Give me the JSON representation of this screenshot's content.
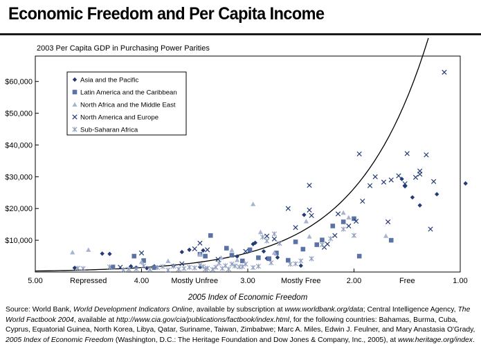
{
  "title": "Economic Freedom and Per Capita Income",
  "chart_data": {
    "type": "scatter",
    "ylabel": "2003 Per Capita GDP in Purchasing Power Parities",
    "xlabel": "2005 Index of Economic Freedom",
    "xlim": [
      5.0,
      1.0
    ],
    "ylim": [
      0,
      68000
    ],
    "x_reversed": true,
    "x_ticks": [
      "5.00",
      "4.00",
      "3.00",
      "2.00",
      "1.00"
    ],
    "x_categories": [
      "Repressed",
      "Mostly Unfree",
      "Mostly Free",
      "Free"
    ],
    "y_ticks": [
      "$10,000",
      "$20,000",
      "$30,000",
      "$40,000",
      "$50,000",
      "$60,000"
    ],
    "legend_position": "top-left",
    "series": [
      {
        "name": "Asia and the Pacific",
        "marker": "diamond",
        "color": "#233a74",
        "points": [
          [
            4.63,
            1300
          ],
          [
            4.37,
            5800
          ],
          [
            4.3,
            5700
          ],
          [
            4.1,
            1800
          ],
          [
            4.05,
            1400
          ],
          [
            3.95,
            1200
          ],
          [
            3.88,
            1800
          ],
          [
            3.7,
            2000
          ],
          [
            3.62,
            6300
          ],
          [
            3.55,
            7000
          ],
          [
            3.45,
            1600
          ],
          [
            3.42,
            6800
          ],
          [
            3.1,
            4900
          ],
          [
            2.95,
            8800
          ],
          [
            2.93,
            9200
          ],
          [
            2.85,
            6500
          ],
          [
            2.82,
            4300
          ],
          [
            2.72,
            4600
          ],
          [
            2.5,
            2000
          ],
          [
            2.47,
            18000
          ],
          [
            1.55,
            29300
          ],
          [
            1.52,
            27000
          ],
          [
            1.45,
            23500
          ],
          [
            1.38,
            21000
          ],
          [
            1.22,
            24500
          ],
          [
            0.95,
            27900
          ]
        ]
      },
      {
        "name": "Latin America and the Caribbean",
        "marker": "square",
        "color": "#5b72a6",
        "points": [
          [
            4.27,
            1600
          ],
          [
            4.07,
            5000
          ],
          [
            3.98,
            3600
          ],
          [
            3.88,
            1400
          ],
          [
            3.45,
            5600
          ],
          [
            3.4,
            5000
          ],
          [
            3.35,
            11500
          ],
          [
            3.2,
            7500
          ],
          [
            3.15,
            5300
          ],
          [
            3.05,
            3500
          ],
          [
            2.98,
            7000
          ],
          [
            2.9,
            4500
          ],
          [
            2.8,
            4200
          ],
          [
            2.73,
            6000
          ],
          [
            2.62,
            3700
          ],
          [
            2.55,
            9500
          ],
          [
            2.48,
            7200
          ],
          [
            2.35,
            8600
          ],
          [
            2.3,
            10100
          ],
          [
            2.2,
            14500
          ],
          [
            2.1,
            15800
          ],
          [
            2.0,
            16800
          ],
          [
            1.95,
            5000
          ],
          [
            1.65,
            10000
          ]
        ]
      },
      {
        "name": "North Africa and the Middle East",
        "marker": "triangle",
        "color": "#a7b4d0",
        "points": [
          [
            4.65,
            6200
          ],
          [
            4.5,
            7000
          ],
          [
            4.0,
            3200
          ],
          [
            3.75,
            3500
          ],
          [
            3.45,
            5600
          ],
          [
            3.25,
            4500
          ],
          [
            3.15,
            6900
          ],
          [
            3.1,
            3800
          ],
          [
            2.95,
            21400
          ],
          [
            2.88,
            12600
          ],
          [
            2.75,
            6100
          ],
          [
            2.45,
            16000
          ],
          [
            2.42,
            11200
          ],
          [
            2.1,
            18700
          ],
          [
            2.05,
            17200
          ],
          [
            1.7,
            11400
          ]
        ]
      },
      {
        "name": "North America and Europe",
        "marker": "x",
        "color": "#233a74",
        "points": [
          [
            4.2,
            1500
          ],
          [
            4.0,
            6000
          ],
          [
            3.62,
            2600
          ],
          [
            3.5,
            7300
          ],
          [
            3.45,
            9100
          ],
          [
            3.38,
            7000
          ],
          [
            3.28,
            4000
          ],
          [
            3.02,
            6500
          ],
          [
            2.82,
            11300
          ],
          [
            2.75,
            10400
          ],
          [
            2.62,
            20000
          ],
          [
            2.55,
            14000
          ],
          [
            2.42,
            19500
          ],
          [
            2.42,
            27300
          ],
          [
            2.4,
            17800
          ],
          [
            2.28,
            7800
          ],
          [
            2.25,
            8800
          ],
          [
            2.18,
            11500
          ],
          [
            2.15,
            18300
          ],
          [
            2.05,
            14500
          ],
          [
            1.98,
            16000
          ],
          [
            1.95,
            37200
          ],
          [
            1.92,
            22300
          ],
          [
            1.85,
            27200
          ],
          [
            1.8,
            30000
          ],
          [
            1.72,
            28300
          ],
          [
            1.68,
            15800
          ],
          [
            1.65,
            29000
          ],
          [
            1.58,
            30300
          ],
          [
            1.52,
            27800
          ],
          [
            1.5,
            37300
          ],
          [
            1.42,
            29800
          ],
          [
            1.38,
            30800
          ],
          [
            1.38,
            31800
          ],
          [
            1.32,
            36900
          ],
          [
            1.28,
            13500
          ],
          [
            1.25,
            28500
          ],
          [
            1.15,
            62900
          ]
        ]
      },
      {
        "name": "Sub-Saharan Africa",
        "marker": "asterisk",
        "color": "#8d9bbd",
        "points": [
          [
            4.6,
            1200
          ],
          [
            4.55,
            1100
          ],
          [
            4.3,
            1600
          ],
          [
            4.17,
            700
          ],
          [
            4.12,
            900
          ],
          [
            4.05,
            1000
          ],
          [
            3.98,
            1900
          ],
          [
            3.92,
            800
          ],
          [
            3.85,
            1400
          ],
          [
            3.8,
            1700
          ],
          [
            3.75,
            600
          ],
          [
            3.7,
            1800
          ],
          [
            3.65,
            900
          ],
          [
            3.6,
            1100
          ],
          [
            3.55,
            1500
          ],
          [
            3.5,
            1300
          ],
          [
            3.45,
            2200
          ],
          [
            3.42,
            1700
          ],
          [
            3.4,
            900
          ],
          [
            3.38,
            1200
          ],
          [
            3.33,
            800
          ],
          [
            3.3,
            1500
          ],
          [
            3.27,
            2800
          ],
          [
            3.24,
            1100
          ],
          [
            3.21,
            2000
          ],
          [
            3.18,
            900
          ],
          [
            3.15,
            2500
          ],
          [
            3.12,
            1900
          ],
          [
            3.08,
            1600
          ],
          [
            3.05,
            1700
          ],
          [
            3.02,
            2500
          ],
          [
            2.95,
            1400
          ],
          [
            2.9,
            1800
          ],
          [
            2.86,
            11000
          ],
          [
            2.82,
            9800
          ],
          [
            2.78,
            2900
          ],
          [
            2.75,
            12000
          ],
          [
            2.7,
            9000
          ],
          [
            2.6,
            2500
          ],
          [
            2.55,
            2600
          ],
          [
            2.5,
            3500
          ],
          [
            2.4,
            4200
          ],
          [
            2.3,
            8600
          ],
          [
            2.22,
            10500
          ],
          [
            2.1,
            13500
          ],
          [
            2.0,
            11500
          ]
        ]
      }
    ],
    "trendline": {
      "type": "exponential",
      "a": 320,
      "b": 1.47,
      "from": 5.0,
      "to": 1.3
    }
  },
  "source_parts": [
    {
      "t": "Source: World Bank, ",
      "i": false
    },
    {
      "t": "World Development Indicators Online",
      "i": true
    },
    {
      "t": ", available by subscription at ",
      "i": false
    },
    {
      "t": "www.worldbank.org/data",
      "i": true
    },
    {
      "t": "; Central Intelligence Agency, ",
      "i": false
    },
    {
      "t": "The World Factbook 2004",
      "i": true
    },
    {
      "t": ", available at ",
      "i": false
    },
    {
      "t": "http://www.cia.gov/cia/publications/factbook/index.html",
      "i": true
    },
    {
      "t": ", for the following countries: Bahamas, Burma, Cuba, Cyprus, Equatorial Guinea, North Korea, Libya, Qatar, Suriname, Taiwan, Zimbabwe; Marc A. Miles, Edwin J. Feulner, and Mary Anastasia O'Grady, ",
      "i": false
    },
    {
      "t": "2005 Index of Economic Freedom",
      "i": true
    },
    {
      "t": " (Washington, D.C.: The Heritage Foundation and Dow Jones & Company, Inc., 2005), at ",
      "i": false
    },
    {
      "t": "www.heritage.org/index",
      "i": true
    },
    {
      "t": ".",
      "i": false
    }
  ]
}
